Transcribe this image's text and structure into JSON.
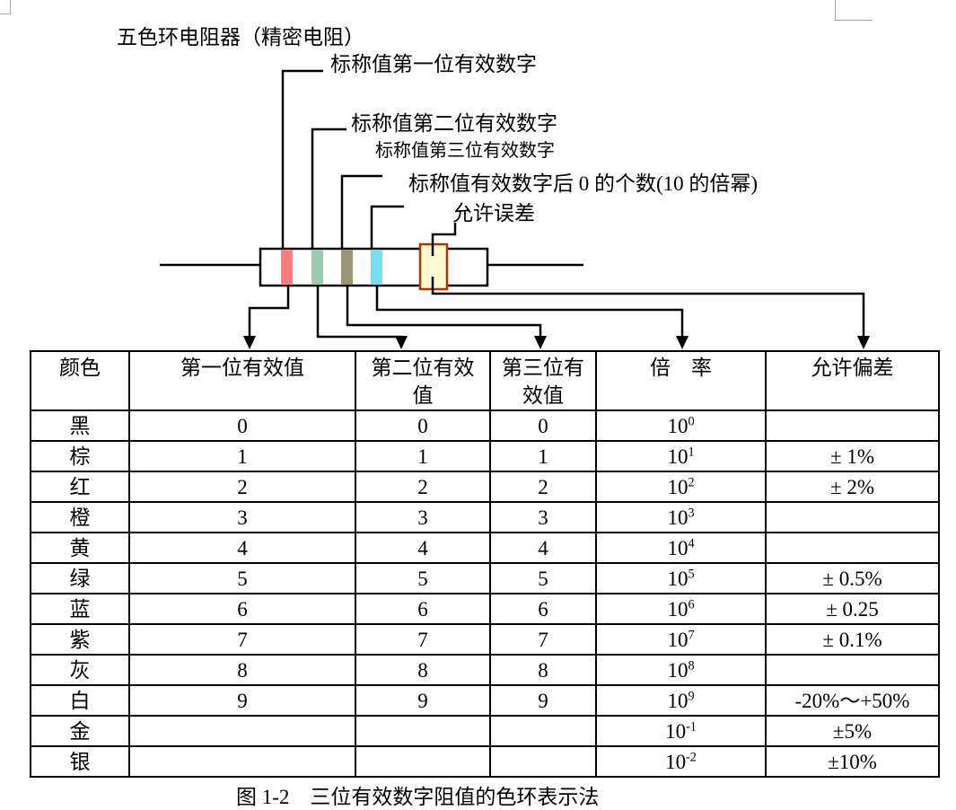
{
  "title": "五色环电阻器（精密电阻）",
  "labels": {
    "first_digit": "标称值第一位有效数字",
    "second_digit": "标称值第二位有效数字",
    "third_digit": "标称值第三位有效数字",
    "multiplier": "标称值有效数字后 0 的个数(10 的倍幂)",
    "tolerance": "允许误差"
  },
  "diagram": {
    "line_color": "#000000",
    "resistor": {
      "body_fill": "#ffffff",
      "outline_color": "#000000",
      "bands": [
        {
          "name": "band-red",
          "color": "#ff7c7c"
        },
        {
          "name": "band-green",
          "color": "#9ccbb0"
        },
        {
          "name": "band-olive",
          "color": "#9a9478"
        },
        {
          "name": "band-cyan",
          "color": "#74def5"
        },
        {
          "name": "band-yellow",
          "color": "#fdfad0",
          "border": "#a83a00"
        }
      ]
    }
  },
  "table": {
    "headers": [
      "颜色",
      "第一位有效值",
      "第二位有效\n值",
      "第三位有\n效值",
      "倍　率",
      "允许偏差"
    ],
    "rows": [
      [
        "黑",
        "0",
        "0",
        "0",
        "10^0",
        ""
      ],
      [
        "棕",
        "1",
        "1",
        "1",
        "10^1",
        "± 1%"
      ],
      [
        "红",
        "2",
        "2",
        "2",
        "10^2",
        "± 2%"
      ],
      [
        "橙",
        "3",
        "3",
        "3",
        "10^3",
        ""
      ],
      [
        "黄",
        "4",
        "4",
        "4",
        "10^4",
        ""
      ],
      [
        "绿",
        "5",
        "5",
        "5",
        "10^5",
        "± 0.5%"
      ],
      [
        "蓝",
        "6",
        "6",
        "6",
        "10^6",
        "± 0.25"
      ],
      [
        "紫",
        "7",
        "7",
        "7",
        "10^7",
        "± 0.1%"
      ],
      [
        "灰",
        "8",
        "8",
        "8",
        "10^8",
        ""
      ],
      [
        "白",
        "9",
        "9",
        "9",
        "10^9",
        "-20%～+50%"
      ],
      [
        "金",
        "",
        "",
        "",
        "10^-1",
        "±5%"
      ],
      [
        "银",
        "",
        "",
        "",
        "10^-2",
        "±10%"
      ]
    ]
  },
  "caption": "图 1-2　三位有效数字阻值的色环表示法"
}
